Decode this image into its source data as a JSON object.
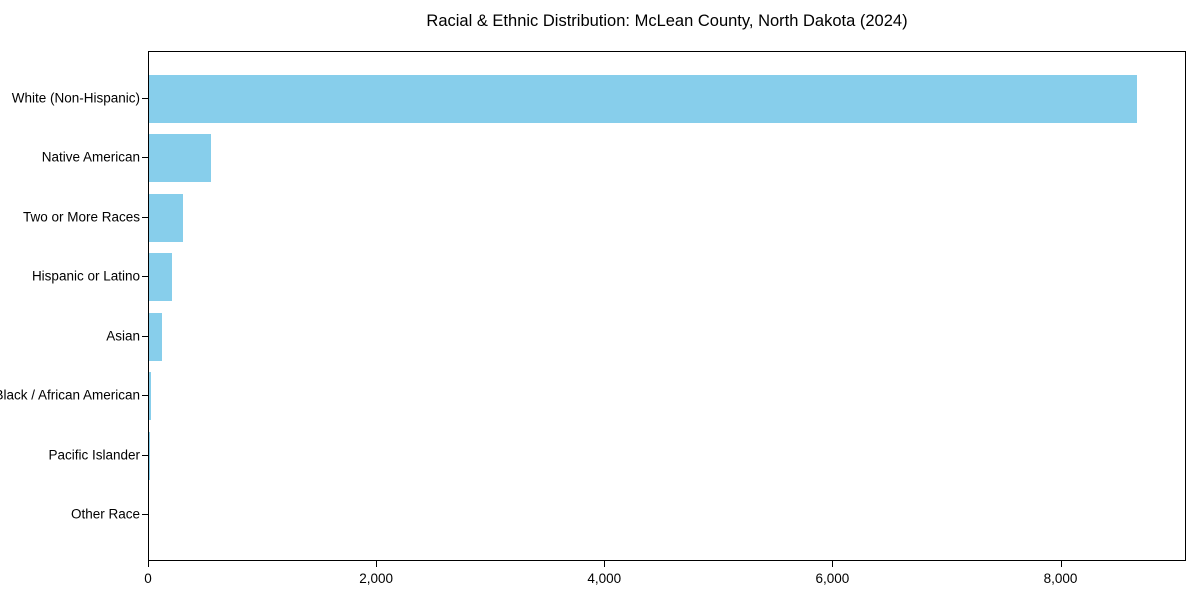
{
  "chart_data": {
    "type": "bar",
    "orientation": "horizontal",
    "title": "Racial & Ethnic Distribution: McLean County, North Dakota (2024)",
    "categories": [
      "White (Non-Hispanic)",
      "Native American",
      "Two or More Races",
      "Hispanic or Latino",
      "Asian",
      "Black / African American",
      "Pacific Islander",
      "Other Race"
    ],
    "values": [
      8660,
      540,
      300,
      200,
      110,
      15,
      5,
      0
    ],
    "xlabel": "",
    "ylabel": "",
    "xlim": [
      0,
      9100
    ],
    "xticks": [
      0,
      2000,
      4000,
      6000,
      8000
    ],
    "xtick_labels": [
      "0",
      "2,000",
      "4,000",
      "6,000",
      "8,000"
    ],
    "grid": false,
    "legend_position": "none",
    "bar_color": "#87CEEB",
    "colors": {
      "bar": "#87CEEB",
      "text": "#000000",
      "axis": "#000000",
      "background": "#FFFFFF"
    }
  }
}
